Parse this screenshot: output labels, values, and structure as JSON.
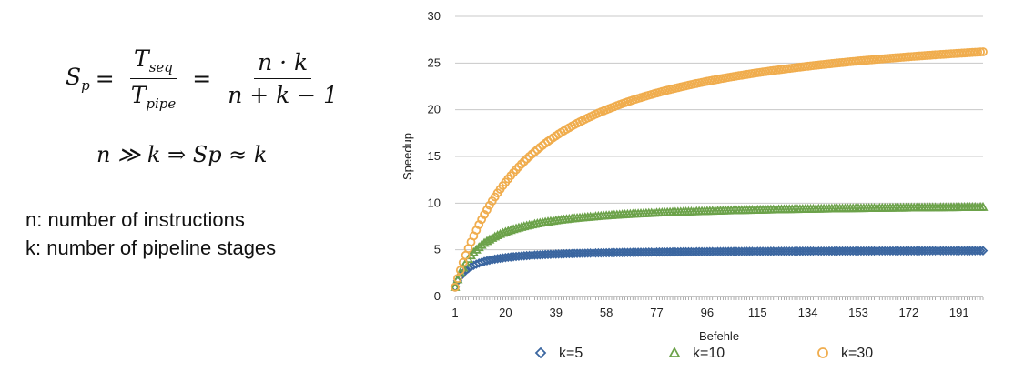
{
  "formulas": {
    "sp_symbol": "S",
    "sp_sub": "p",
    "frac1_num_base": "T",
    "frac1_num_sub": "seq",
    "frac1_den_base": "T",
    "frac1_den_sub": "pipe",
    "frac2_num": "n · k",
    "frac2_den": "n + k − 1",
    "equals": "=",
    "line2": "n ≫ k ⇒ Sp  ≈ k"
  },
  "notes": {
    "n": "n: number of instructions",
    "k": "k: number of pipeline stages"
  },
  "chart_data": {
    "type": "scatter",
    "xlabel": "Befehle",
    "ylabel": "Speedup",
    "xlim": [
      1,
      200
    ],
    "ylim": [
      0,
      30
    ],
    "y_ticks": [
      0,
      5,
      10,
      15,
      20,
      25,
      30
    ],
    "x_tick_labels": [
      1,
      20,
      39,
      58,
      77,
      96,
      115,
      134,
      153,
      172,
      191
    ],
    "grid": "horizontal",
    "legend_position": "bottom",
    "formula": "y = x*k/(x+k-1)",
    "series": [
      {
        "name": "k=5",
        "k": 5,
        "marker": "diamond",
        "color": "#3b66a0"
      },
      {
        "name": "k=10",
        "k": 10,
        "marker": "triangle",
        "color": "#6ca24a"
      },
      {
        "name": "k=30",
        "k": 30,
        "marker": "circle",
        "color": "#f0ad4e"
      }
    ]
  }
}
